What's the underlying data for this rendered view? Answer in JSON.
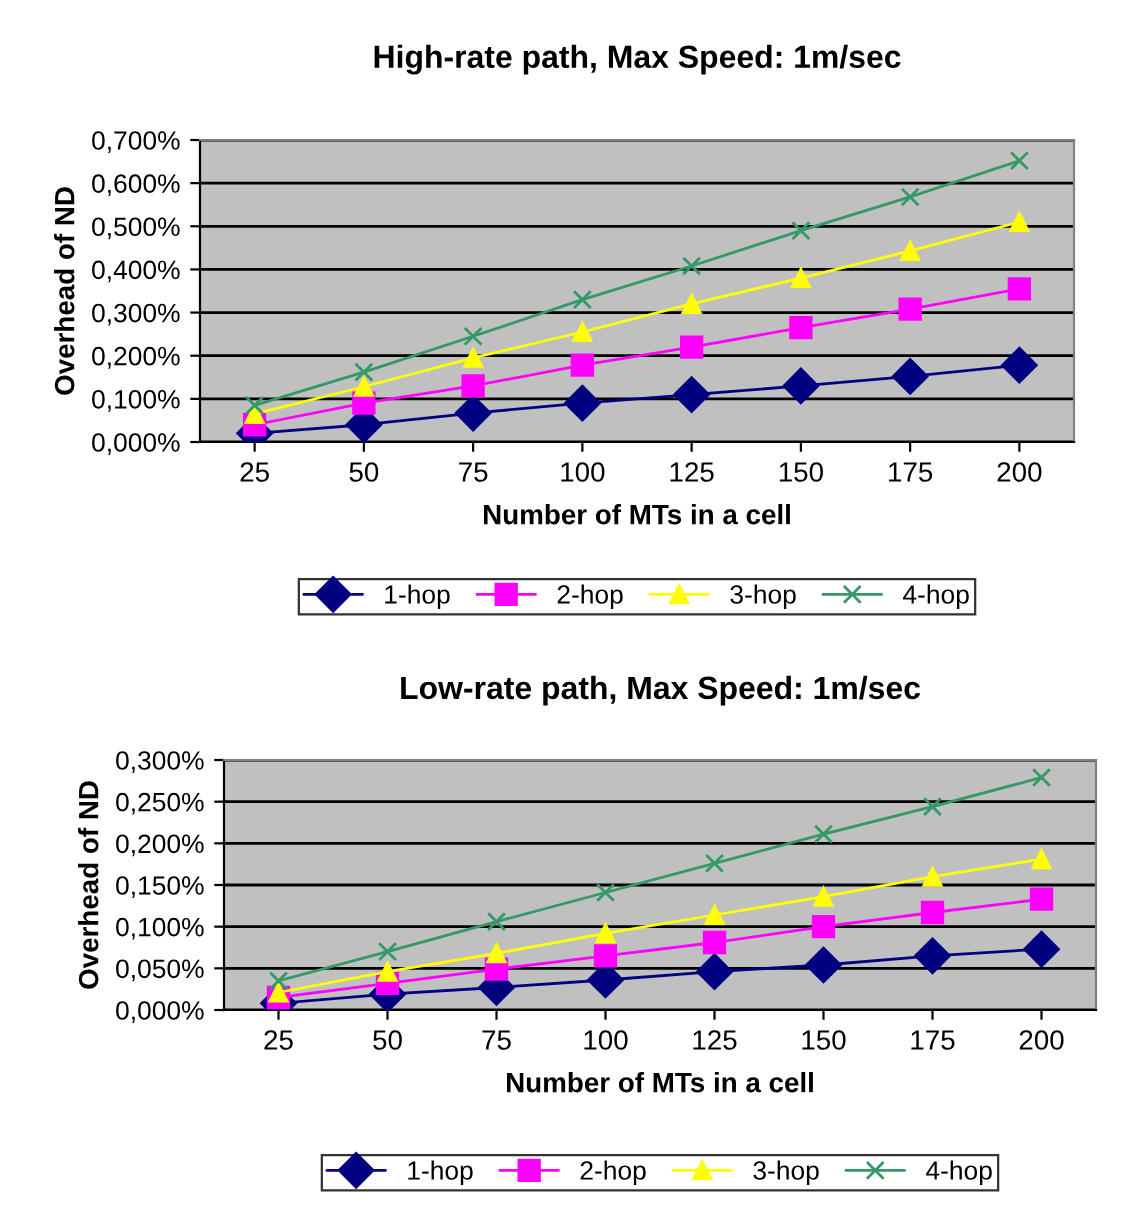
{
  "chart_data": [
    {
      "type": "line",
      "title": "High-rate path, Max Speed: 1m/sec",
      "xlabel": "Number of MTs in a cell",
      "ylabel": "Overhead of ND",
      "categories": [
        "25",
        "50",
        "75",
        "100",
        "125",
        "150",
        "175",
        "200"
      ],
      "series": [
        {
          "name": "1-hop",
          "color": "#000080",
          "marker": "diamond",
          "values": [
            0.02,
            0.04,
            0.067,
            0.09,
            0.11,
            0.13,
            0.152,
            0.178
          ]
        },
        {
          "name": "2-hop",
          "color": "#ff00ff",
          "marker": "square",
          "values": [
            0.04,
            0.09,
            0.13,
            0.178,
            0.22,
            0.265,
            0.308,
            0.355
          ]
        },
        {
          "name": "3-hop",
          "color": "#ffff00",
          "marker": "triangle",
          "values": [
            0.065,
            0.128,
            0.195,
            0.255,
            0.32,
            0.38,
            0.443,
            0.51
          ]
        },
        {
          "name": "4-hop",
          "color": "#339966",
          "marker": "cross",
          "values": [
            0.085,
            0.162,
            0.245,
            0.33,
            0.408,
            0.49,
            0.568,
            0.652
          ]
        }
      ],
      "ylim": [
        0,
        0.7
      ],
      "yticks": [
        {
          "value": 0,
          "label": "0,000%"
        },
        {
          "value": 0.1,
          "label": "0,100%"
        },
        {
          "value": 0.2,
          "label": "0,200%"
        },
        {
          "value": 0.3,
          "label": "0,300%"
        },
        {
          "value": 0.4,
          "label": "0,400%"
        },
        {
          "value": 0.5,
          "label": "0,500%"
        },
        {
          "value": 0.6,
          "label": "0,600%"
        },
        {
          "value": 0.7,
          "label": "0,700%"
        }
      ],
      "grid": "y",
      "legend": "bottom"
    },
    {
      "type": "line",
      "title": "Low-rate path, Max Speed: 1m/sec",
      "xlabel": "Number of MTs in a cell",
      "ylabel": "Overhead of ND",
      "categories": [
        "25",
        "50",
        "75",
        "100",
        "125",
        "150",
        "175",
        "200"
      ],
      "series": [
        {
          "name": "1-hop",
          "color": "#000080",
          "marker": "diamond",
          "values": [
            0.008,
            0.019,
            0.027,
            0.036,
            0.046,
            0.054,
            0.065,
            0.073
          ]
        },
        {
          "name": "2-hop",
          "color": "#ff00ff",
          "marker": "square",
          "values": [
            0.015,
            0.032,
            0.049,
            0.065,
            0.081,
            0.1,
            0.117,
            0.133
          ]
        },
        {
          "name": "3-hop",
          "color": "#ffff00",
          "marker": "triangle",
          "values": [
            0.021,
            0.046,
            0.068,
            0.092,
            0.114,
            0.136,
            0.16,
            0.181
          ]
        },
        {
          "name": "4-hop",
          "color": "#339966",
          "marker": "cross",
          "values": [
            0.035,
            0.07,
            0.106,
            0.141,
            0.176,
            0.211,
            0.244,
            0.279
          ]
        }
      ],
      "ylim": [
        0,
        0.3
      ],
      "yticks": [
        {
          "value": 0,
          "label": "0,000%"
        },
        {
          "value": 0.05,
          "label": "0,050%"
        },
        {
          "value": 0.1,
          "label": "0,100%"
        },
        {
          "value": 0.15,
          "label": "0,150%"
        },
        {
          "value": 0.2,
          "label": "0,200%"
        },
        {
          "value": 0.25,
          "label": "0,250%"
        },
        {
          "value": 0.3,
          "label": "0,300%"
        }
      ],
      "grid": "y",
      "legend": "bottom"
    }
  ]
}
